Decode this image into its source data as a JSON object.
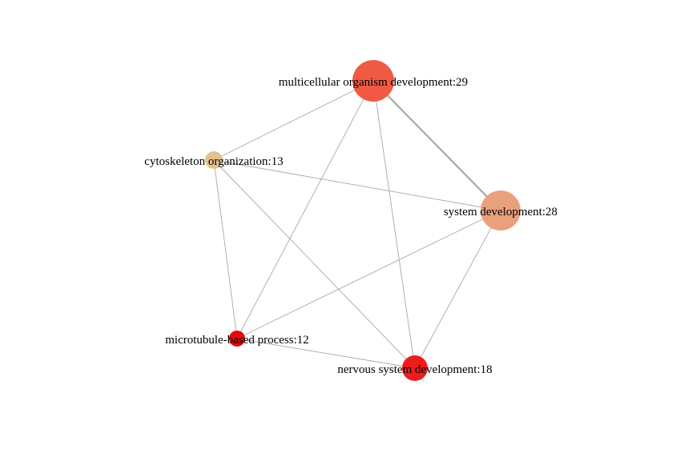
{
  "network": {
    "nodes": [
      {
        "id": "multicellular",
        "label": "multicellular organism development:29",
        "color": "#f05a45"
      },
      {
        "id": "system",
        "label": "system development:28",
        "color": "#e9a07c"
      },
      {
        "id": "cytoskeleton",
        "label": "cytoskeleton organization:13",
        "color": "#e3c28f"
      },
      {
        "id": "microtubule",
        "label": "microtubule-based process:12",
        "color": "#e50a0a"
      },
      {
        "id": "nervous",
        "label": "nervous system development:18",
        "color": "#ec1d1d"
      }
    ],
    "edges": [
      {
        "source": "multicellular",
        "target": "system",
        "weight": 3
      },
      {
        "source": "multicellular",
        "target": "cytoskeleton",
        "weight": 1
      },
      {
        "source": "multicellular",
        "target": "microtubule",
        "weight": 1
      },
      {
        "source": "multicellular",
        "target": "nervous",
        "weight": 1
      },
      {
        "source": "system",
        "target": "cytoskeleton",
        "weight": 1
      },
      {
        "source": "system",
        "target": "microtubule",
        "weight": 1
      },
      {
        "source": "system",
        "target": "nervous",
        "weight": 1
      },
      {
        "source": "cytoskeleton",
        "target": "microtubule",
        "weight": 1
      },
      {
        "source": "cytoskeleton",
        "target": "nervous",
        "weight": 1
      },
      {
        "source": "microtubule",
        "target": "nervous",
        "weight": 1
      }
    ],
    "edge_color": "#a8a8a8"
  }
}
